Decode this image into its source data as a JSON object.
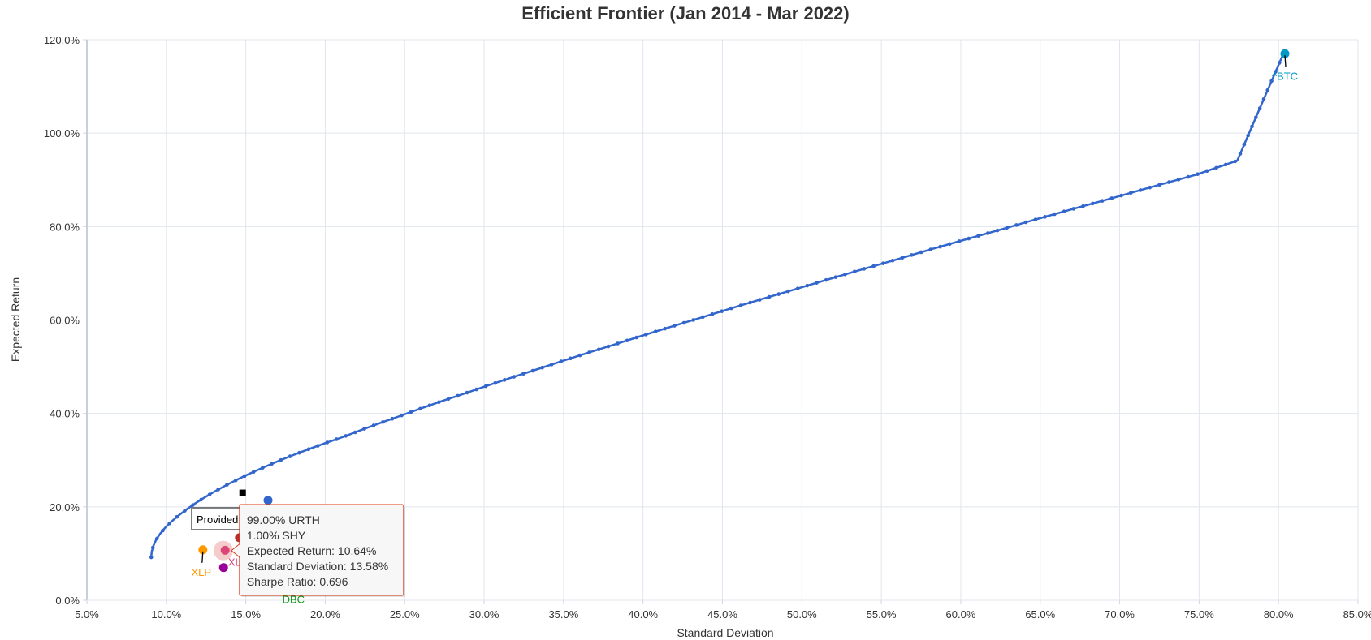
{
  "chart_data": {
    "type": "scatter",
    "title": "Efficient Frontier (Jan 2014 - Mar 2022)",
    "xlabel": "Standard Deviation",
    "ylabel": "Expected Return",
    "xlim": [
      5.0,
      85.0
    ],
    "ylim": [
      0.0,
      120.0
    ],
    "xticks": [
      "5.0%",
      "10.0%",
      "15.0%",
      "20.0%",
      "25.0%",
      "30.0%",
      "35.0%",
      "40.0%",
      "45.0%",
      "50.0%",
      "55.0%",
      "60.0%",
      "65.0%",
      "70.0%",
      "75.0%",
      "80.0%",
      "85.0%"
    ],
    "yticks": [
      "0.0%",
      "20.0%",
      "40.0%",
      "60.0%",
      "80.0%",
      "100.0%",
      "120.0%"
    ],
    "grid": true,
    "frontier": {
      "color": "#3366cc",
      "x": [
        9.05,
        9.08,
        9.18,
        9.35,
        9.6,
        9.92,
        10.3,
        10.75,
        11.25,
        11.8,
        12.4,
        13.05,
        13.75,
        14.5,
        15.3,
        16.15,
        17.05,
        18.0,
        19.0,
        20.05,
        21.15,
        22.3,
        23.5,
        24.75,
        26.05,
        27.4,
        28.8,
        30.25,
        31.75,
        33.3,
        34.9,
        36.55,
        38.25,
        40.0,
        41.8,
        43.65,
        45.55,
        47.5,
        49.5,
        51.55,
        53.65,
        55.8,
        58.0,
        60.25,
        62.55,
        64.9,
        67.3,
        69.75,
        72.25,
        74.8,
        77.4,
        80.3
      ],
      "y": [
        9.2,
        10.4,
        11.6,
        12.9,
        14.2,
        15.5,
        16.8,
        18.1,
        19.4,
        20.7,
        22.0,
        23.3,
        24.6,
        25.9,
        27.2,
        28.5,
        29.8,
        31.1,
        32.4,
        33.7,
        35.0,
        36.5,
        38.0,
        39.5,
        41.1,
        42.7,
        44.3,
        46.0,
        47.7,
        49.4,
        51.2,
        53.0,
        54.8,
        56.7,
        58.6,
        60.5,
        62.5,
        64.5,
        66.5,
        68.6,
        70.7,
        72.8,
        75.0,
        77.2,
        79.4,
        81.7,
        84.0,
        86.3,
        88.7,
        91.1,
        94.1,
        117.0
      ]
    },
    "assets": [
      {
        "name": "^BTC",
        "x": 80.4,
        "y": 117.0,
        "color": "#0099c6",
        "label_dx": 0,
        "label_dy": 32
      },
      {
        "name": "XLP",
        "x": 12.3,
        "y": 10.8,
        "color": "#ff9900",
        "label_dx": -2,
        "label_dy": 32
      },
      {
        "name": "XLE",
        "x": 13.7,
        "y": 10.7,
        "color": "#dd4477",
        "label_dx": 16,
        "label_dy": 19
      },
      {
        "name": "",
        "x": 14.6,
        "y": 13.4,
        "color": "#b82e2e"
      },
      {
        "name": "",
        "x": 13.6,
        "y": 7.0,
        "color": "#990099"
      },
      {
        "name": "",
        "x": 16.4,
        "y": 21.4,
        "color": "#3366cc"
      },
      {
        "name": "DBC",
        "x": 18.0,
        "y": 1.8,
        "color": "#109618",
        "label_dx": 0,
        "label_dy": 14
      }
    ],
    "provided_portfolio": {
      "x": 14.8,
      "y": 23.0,
      "label": "Provided Portfolio"
    },
    "tooltip": {
      "x": 13.58,
      "y": 10.64,
      "lines": [
        "99.00% URTH",
        "1.00% SHY",
        "Expected Return: 10.64%",
        "Standard Deviation: 13.58%",
        "Sharpe Ratio: 0.696"
      ],
      "border_color": "#dc3912",
      "halo_color": "#f4cccc"
    }
  }
}
